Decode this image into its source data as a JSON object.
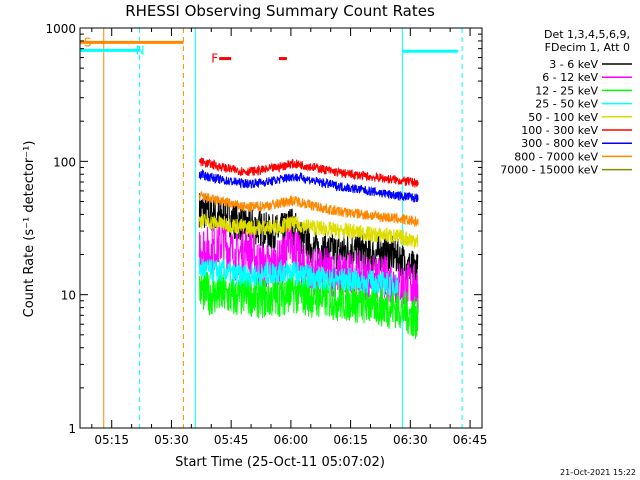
{
  "chart_data": {
    "type": "line",
    "title": "RHESSI Observing Summary Count Rates",
    "xlabel": "Start Time (25-Oct-11 05:07:02)",
    "ylabel": "Count Rate (s⁻¹ detector⁻¹)",
    "y_scale": "log",
    "ylim": [
      1,
      1000
    ],
    "xlim": [
      "05:07:02",
      "06:48:00"
    ],
    "x_ticks": [
      "05:15",
      "05:30",
      "05:45",
      "06:00",
      "06:15",
      "06:30",
      "06:45"
    ],
    "y_ticks": [
      "1",
      "10",
      "100",
      "1000"
    ],
    "legend_position": "top-right",
    "legend_header": [
      "Det 1,3,4,5,6,9,",
      "FDecim 1, Att 0"
    ],
    "footer_stamp": "21-Oct-2021 15:22",
    "series": [
      {
        "name": "3 - 6 keV",
        "color": "#000000",
        "x": [
          "05:37",
          "05:40",
          "05:43",
          "05:46",
          "05:49",
          "05:52",
          "05:55",
          "05:58",
          "06:00",
          "06:03",
          "06:06",
          "06:09",
          "06:12",
          "06:15",
          "06:18",
          "06:21",
          "06:24",
          "06:27",
          "06:30",
          "06:32"
        ],
        "y": [
          44,
          40,
          38,
          36,
          33,
          32,
          29,
          30,
          34,
          26,
          22,
          21,
          21,
          22,
          21,
          20,
          21,
          19,
          16,
          15
        ]
      },
      {
        "name": "6 - 12 keV",
        "color": "#ff00ff",
        "x": [
          "05:37",
          "05:40",
          "05:43",
          "05:46",
          "05:49",
          "05:52",
          "05:55",
          "05:58",
          "06:00",
          "06:03",
          "06:06",
          "06:09",
          "06:12",
          "06:15",
          "06:18",
          "06:21",
          "06:24",
          "06:27",
          "06:30",
          "06:32"
        ],
        "y": [
          24,
          21,
          26,
          19,
          23,
          17,
          16,
          18,
          27,
          16,
          15,
          15,
          14,
          14,
          14,
          13,
          13,
          12,
          12,
          11
        ]
      },
      {
        "name": "12 - 25 keV",
        "color": "#00ff00",
        "x": [
          "05:37",
          "05:40",
          "05:43",
          "05:46",
          "05:49",
          "05:52",
          "05:55",
          "05:58",
          "06:00",
          "06:03",
          "06:06",
          "06:09",
          "06:12",
          "06:15",
          "06:18",
          "06:21",
          "06:24",
          "06:27",
          "06:30",
          "06:32"
        ],
        "y": [
          11,
          10,
          10,
          9.5,
          10,
          9.5,
          9.5,
          10,
          10.5,
          10,
          9.5,
          9.5,
          9,
          9,
          8.5,
          8.5,
          8,
          8,
          7,
          6.5
        ]
      },
      {
        "name": "25 - 50 keV",
        "color": "#00ffff",
        "x": [
          "05:07",
          "05:22",
          "05:22",
          "05:37",
          "05:40",
          "05:43",
          "05:46",
          "05:49",
          "05:52",
          "05:55",
          "05:58",
          "06:00",
          "06:03",
          "06:06",
          "06:09",
          "06:12",
          "06:15",
          "06:18",
          "06:21",
          "06:24",
          "06:27",
          "06:28",
          "06:28",
          "06:42"
        ],
        "y": [
          680,
          680,
          null,
          16,
          15,
          15,
          14,
          14,
          14,
          14.5,
          15,
          15,
          14,
          13.5,
          13,
          13,
          13,
          12.5,
          12.5,
          12,
          12,
          null,
          670,
          670
        ]
      },
      {
        "name": "50 - 100 keV",
        "color": "#dddd00",
        "x": [
          "05:37",
          "05:40",
          "05:43",
          "05:46",
          "05:49",
          "05:52",
          "05:55",
          "05:58",
          "06:00",
          "06:03",
          "06:06",
          "06:09",
          "06:12",
          "06:15",
          "06:18",
          "06:21",
          "06:24",
          "06:27",
          "06:30",
          "06:32"
        ],
        "y": [
          36,
          35,
          34,
          33,
          32,
          32,
          32,
          33,
          34,
          33,
          32,
          31,
          30,
          30,
          29,
          28,
          28,
          27,
          26,
          25
        ]
      },
      {
        "name": "100 - 300 keV",
        "color": "#ff0000",
        "x": [
          "05:37",
          "05:40",
          "05:43",
          "05:46",
          "05:49",
          "05:52",
          "05:55",
          "05:58",
          "06:00",
          "06:03",
          "06:06",
          "06:09",
          "06:12",
          "06:15",
          "06:18",
          "06:21",
          "06:24",
          "06:27",
          "06:30",
          "06:32"
        ],
        "y": [
          100,
          95,
          90,
          86,
          84,
          85,
          88,
          92,
          96,
          94,
          90,
          86,
          82,
          80,
          78,
          76,
          74,
          72,
          70,
          68
        ]
      },
      {
        "name": "300 - 800 keV",
        "color": "#0000ff",
        "x": [
          "05:37",
          "05:40",
          "05:43",
          "05:46",
          "05:49",
          "05:52",
          "05:55",
          "05:58",
          "06:00",
          "06:03",
          "06:06",
          "06:09",
          "06:12",
          "06:15",
          "06:18",
          "06:21",
          "06:24",
          "06:27",
          "06:30",
          "06:32"
        ],
        "y": [
          80,
          76,
          72,
          70,
          68,
          69,
          71,
          74,
          77,
          75,
          71,
          68,
          65,
          63,
          61,
          59,
          57,
          55,
          54,
          52
        ]
      },
      {
        "name": "800 - 7000 keV",
        "color": "#ff8800",
        "x": [
          "05:07",
          "05:33",
          "05:33",
          "05:37",
          "05:40",
          "05:43",
          "05:46",
          "05:49",
          "05:52",
          "05:55",
          "05:58",
          "06:00",
          "06:03",
          "06:06",
          "06:09",
          "06:12",
          "06:15",
          "06:18",
          "06:21",
          "06:24",
          "06:27",
          "06:30",
          "06:32"
        ],
        "y": [
          780,
          780,
          null,
          55,
          52,
          50,
          47,
          45,
          46,
          47,
          49,
          51,
          49,
          46,
          44,
          42,
          41,
          40,
          39,
          38,
          37,
          36,
          35
        ]
      },
      {
        "name": "7000 - 15000 keV",
        "color": "#888800",
        "x": [],
        "y": []
      }
    ],
    "annotations": {
      "flags": [
        {
          "label": "S",
          "color": "#ff8800",
          "x": "05:08",
          "y": 780
        },
        {
          "label": "N",
          "color": "#00ffff",
          "x": "05:21",
          "y": 680
        },
        {
          "label": "F",
          "color": "#ff0000",
          "x": "05:40",
          "y": 590
        }
      ],
      "flare_bars": [
        {
          "color": "#ff0000",
          "x0": "05:42",
          "x1": "05:45",
          "y": 590
        },
        {
          "color": "#ff0000",
          "x0": "05:57",
          "x1": "05:59",
          "y": 590
        }
      ],
      "vlines": [
        {
          "x": "05:13",
          "color": "#ff8800",
          "style": "solid"
        },
        {
          "x": "05:33",
          "color": "#ff8800",
          "style": "dashed"
        },
        {
          "x": "05:22",
          "color": "#00ffff",
          "style": "dashed"
        },
        {
          "x": "05:36",
          "color": "#00ffff",
          "style": "solid"
        },
        {
          "x": "06:28",
          "color": "#00ffff",
          "style": "solid"
        },
        {
          "x": "06:43",
          "color": "#00ffff",
          "style": "dashed"
        }
      ]
    }
  }
}
